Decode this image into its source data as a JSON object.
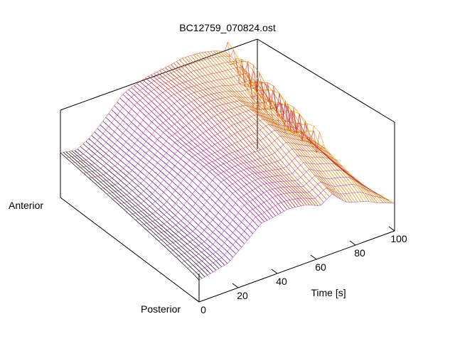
{
  "chart_data": {
    "type": "surface",
    "title": "BC12759_070824.ost",
    "xlabel": "Time [s]",
    "y_axis_end_labels": {
      "near": "Posterior",
      "far": "Anterior"
    },
    "xlim": [
      0,
      100
    ],
    "xticks": [
      "0",
      "20",
      "40",
      "60",
      "80",
      "100"
    ],
    "grid": false,
    "legend": "none",
    "mesh": "wireframe",
    "colormap": [
      "#000000",
      "#5a0aa0",
      "#8000d0",
      "#b01060",
      "#d03000",
      "#f08000",
      "#f8e000"
    ],
    "time_samples": 70,
    "profile_samples": 24,
    "surface_height": {
      "t_s": [
        0,
        8,
        15,
        22,
        32,
        45,
        55,
        62,
        68,
        75,
        85,
        92,
        100
      ],
      "near_edge": [
        0.22,
        0.25,
        0.28,
        0.4,
        0.58,
        0.6,
        0.56,
        0.52,
        0.62,
        0.5,
        0.4,
        0.3,
        0.25
      ],
      "far_edge": [
        0.45,
        0.42,
        0.5,
        0.62,
        0.8,
        0.9,
        0.95,
        0.97,
        0.94,
        0.9,
        0.85,
        0.62,
        0.3
      ]
    }
  }
}
